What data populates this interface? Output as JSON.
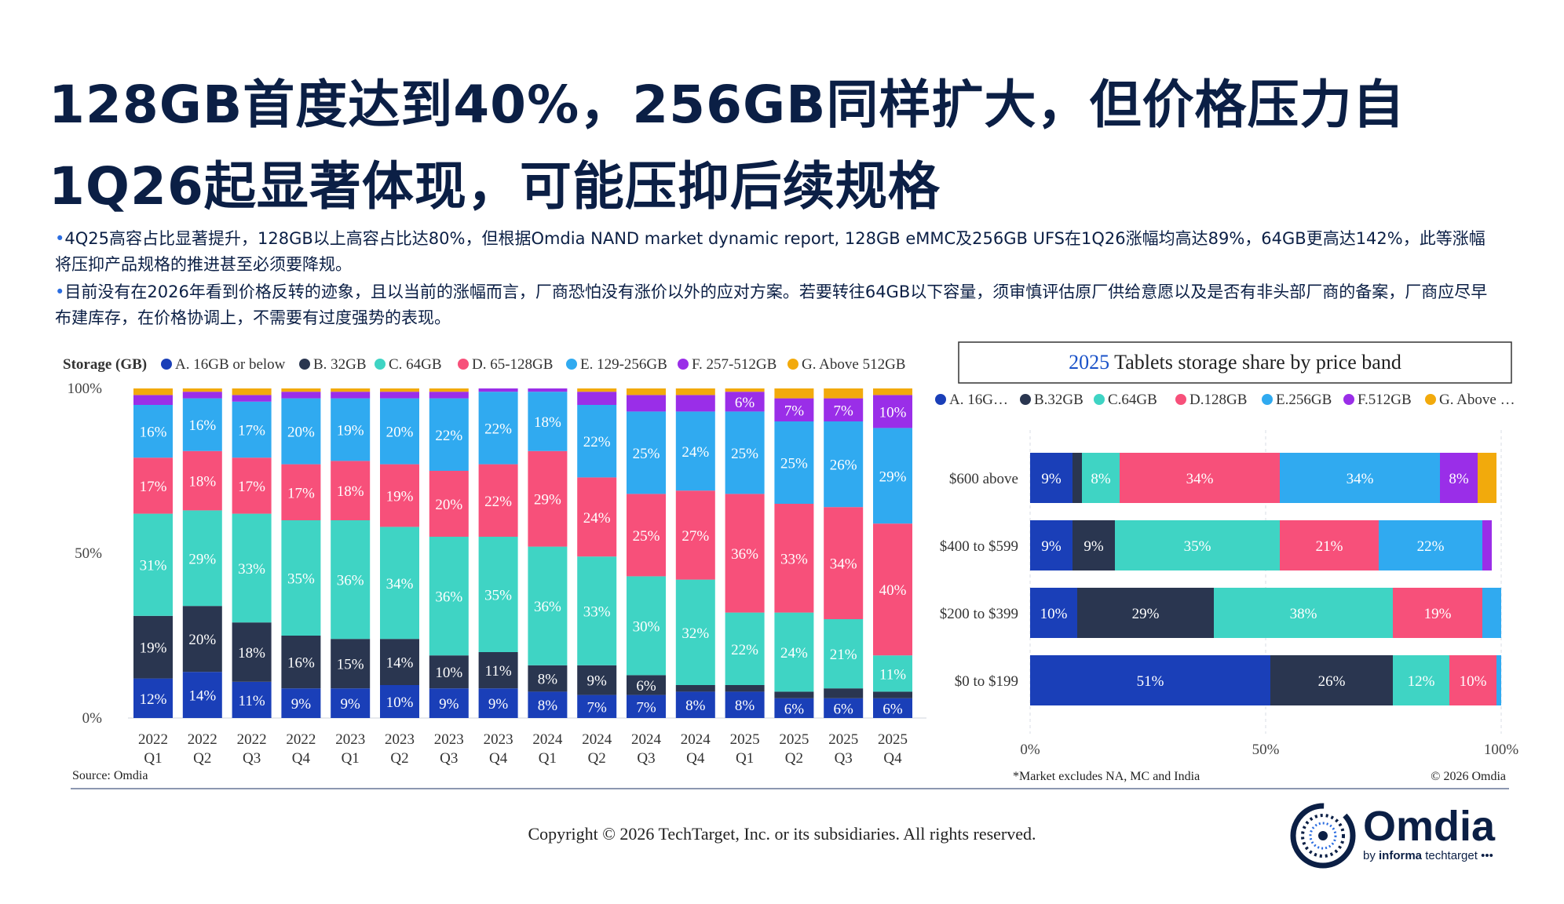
{
  "title_line1": "128GB首度达到40%，256GB同样扩大，但价格压力自",
  "title_line2": "1Q26起显著体现，可能压抑后续规格",
  "bullet1": "4Q25高容占比显著提升，128GB以上高容占比达80%，但根据Omdia NAND market dynamic report, 128GB eMMC及256GB UFS在1Q26涨幅均高达89%，64GB更高达142%，此等涨幅将压抑产品规格的推进甚至必须要降规。",
  "bullet2": "目前没有在2026年看到价格反转的迹象，且以当前的涨幅而言，厂商恐怕没有涨价以外的应对方案。若要转往64GB以下容量，须审慎评估原厂供给意愿以及是否有非头部厂商的备案，厂商应尽早布建库存，在价格协调上，不需要有过度强势的表现。",
  "bullet_marker": "•",
  "copyright": "Copyright © 2026 TechTarget, Inc. or its subsidiaries. All rights reserved.",
  "logo": {
    "word": "Omdia",
    "sub_prefix": "by ",
    "sub_bold": "informa",
    "sub_suffix": " techtarget •••"
  },
  "chart_data": [
    {
      "type": "bar",
      "stacked": true,
      "legend_title": "Storage (GB)",
      "legend_position": "top",
      "source": "Source: Omdia",
      "categories": [
        "2022 Q1",
        "2022 Q2",
        "2022 Q3",
        "2022 Q4",
        "2023 Q1",
        "2023 Q2",
        "2023 Q3",
        "2023 Q4",
        "2024 Q1",
        "2024 Q2",
        "2024 Q3",
        "2024 Q4",
        "2025 Q1",
        "2025 Q2",
        "2025 Q3",
        "2025 Q4"
      ],
      "yticks": [
        "0%",
        "50%",
        "100%"
      ],
      "ylim": [
        0,
        100
      ],
      "series": [
        {
          "name": "A. 16GB or below",
          "color": "#1a3fb8",
          "values": [
            12,
            14,
            11,
            9,
            9,
            10,
            9,
            9,
            8,
            7,
            7,
            8,
            8,
            6,
            6,
            6
          ]
        },
        {
          "name": "B. 32GB",
          "color": "#2a3650",
          "values": [
            19,
            20,
            18,
            16,
            15,
            14,
            10,
            11,
            8,
            9,
            6,
            2,
            2,
            2,
            3,
            2
          ]
        },
        {
          "name": "C. 64GB",
          "color": "#3fd4c4",
          "values": [
            31,
            29,
            33,
            35,
            36,
            34,
            36,
            35,
            36,
            33,
            30,
            32,
            22,
            24,
            21,
            11
          ]
        },
        {
          "name": "D. 65-128GB",
          "color": "#f7507a",
          "values": [
            17,
            18,
            17,
            17,
            18,
            19,
            20,
            22,
            29,
            24,
            25,
            27,
            36,
            33,
            34,
            40
          ]
        },
        {
          "name": "E. 129-256GB",
          "color": "#30aaf0",
          "values": [
            16,
            16,
            17,
            20,
            19,
            20,
            22,
            22,
            18,
            22,
            25,
            24,
            25,
            25,
            26,
            29
          ]
        },
        {
          "name": "F. 257-512GB",
          "color": "#9a2ee8",
          "values": [
            3,
            2,
            2,
            2,
            2,
            2,
            2,
            1,
            1,
            4,
            5,
            5,
            6,
            7,
            7,
            10
          ]
        },
        {
          "name": "G. Above 512GB",
          "color": "#f2aa0c",
          "values": [
            2,
            1,
            2,
            1,
            1,
            1,
            1,
            0,
            0,
            1,
            2,
            2,
            1,
            3,
            3,
            2
          ]
        }
      ],
      "labels": [
        [
          "12%",
          "14%",
          "11%",
          "9%",
          "9%",
          "10%",
          "9%",
          "9%",
          "8%",
          "7%",
          "7%",
          "8%",
          "8%",
          "6%",
          "6%",
          "6%"
        ],
        [
          "19%",
          "20%",
          "18%",
          "16%",
          "15%",
          "14%",
          "10%",
          "11%",
          "8%",
          "9%",
          "6%",
          "",
          "",
          "",
          "",
          ""
        ],
        [
          "31%",
          "29%",
          "33%",
          "35%",
          "36%",
          "34%",
          "36%",
          "35%",
          "36%",
          "33%",
          "30%",
          "32%",
          "22%",
          "24%",
          "21%",
          "11%"
        ],
        [
          "17%",
          "18%",
          "17%",
          "17%",
          "18%",
          "19%",
          "20%",
          "22%",
          "29%",
          "24%",
          "25%",
          "27%",
          "36%",
          "33%",
          "34%",
          "40%"
        ],
        [
          "16%",
          "16%",
          "17%",
          "20%",
          "19%",
          "20%",
          "22%",
          "22%",
          "18%",
          "22%",
          "25%",
          "24%",
          "25%",
          "25%",
          "26%",
          "29%"
        ],
        [
          "",
          "",
          "",
          "",
          "",
          "",
          "",
          "",
          "",
          "",
          "",
          "",
          "6%",
          "7%",
          "7%",
          "10%"
        ],
        [
          "",
          "",
          "",
          "",
          "",
          "",
          "",
          "",
          "",
          "",
          "",
          "",
          "",
          "",
          "",
          ""
        ]
      ]
    },
    {
      "type": "bar",
      "orientation": "horizontal",
      "stacked": true,
      "title_year": "2025",
      "title_rest": " Tablets storage share by price band",
      "note": "*Market excludes NA, MC and India",
      "credit": "© 2026 Omdia",
      "legend_position": "top",
      "xticks": [
        "0%",
        "50%",
        "100%"
      ],
      "xlim": [
        0,
        100
      ],
      "categories": [
        "$600 above",
        "$400 to $599",
        "$200 to $399",
        "$0 to $199"
      ],
      "series": [
        {
          "name": "A. 16G…",
          "color": "#1a3fb8",
          "values": [
            9,
            9,
            10,
            51
          ]
        },
        {
          "name": "B.32GB",
          "color": "#2a3650",
          "values": [
            2,
            9,
            29,
            26
          ]
        },
        {
          "name": "C.64GB",
          "color": "#3fd4c4",
          "values": [
            8,
            35,
            38,
            12
          ]
        },
        {
          "name": "D.128GB",
          "color": "#f7507a",
          "values": [
            34,
            21,
            19,
            10
          ]
        },
        {
          "name": "E.256GB",
          "color": "#30aaf0",
          "values": [
            34,
            22,
            4,
            1
          ]
        },
        {
          "name": "F.512GB",
          "color": "#9a2ee8",
          "values": [
            8,
            2,
            0,
            0
          ]
        },
        {
          "name": "G. Above …",
          "color": "#f2aa0c",
          "values": [
            4,
            0,
            0,
            0
          ]
        }
      ],
      "labels": [
        [
          "9%",
          "9%",
          "10%",
          "51%"
        ],
        [
          "",
          "9%",
          "29%",
          "26%"
        ],
        [
          "8%",
          "35%",
          "38%",
          "12%"
        ],
        [
          "34%",
          "21%",
          "19%",
          "10%"
        ],
        [
          "34%",
          "22%",
          "",
          ""
        ],
        [
          "8%",
          "",
          "",
          ""
        ],
        [
          "",
          "",
          "",
          ""
        ]
      ]
    }
  ]
}
